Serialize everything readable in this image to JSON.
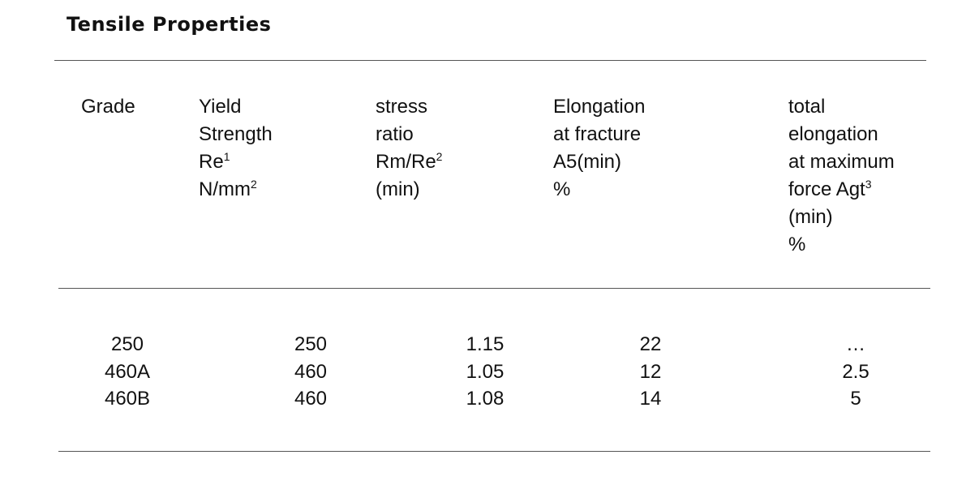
{
  "header": {
    "title": "Tensile Properties"
  },
  "table": {
    "columns": [
      {
        "lines": [
          {
            "text": "Grade"
          }
        ]
      },
      {
        "lines": [
          {
            "text": "Yield"
          },
          {
            "text": "Strength"
          },
          {
            "text": "Re",
            "sup": "1"
          },
          {
            "text": "N/mm",
            "sup": "2"
          }
        ]
      },
      {
        "lines": [
          {
            "text": "stress"
          },
          {
            "text": "ratio"
          },
          {
            "text": "Rm/Re",
            "sup": "2"
          },
          {
            "text": "(min)"
          }
        ]
      },
      {
        "lines": [
          {
            "text": "Elongation"
          },
          {
            "text": "at fracture"
          },
          {
            "text": "A5(min)"
          },
          {
            "text": "%"
          }
        ]
      },
      {
        "lines": [
          {
            "text": "total"
          },
          {
            "text": "elongation"
          },
          {
            "text": "at maximum"
          },
          {
            "text": "force Agt",
            "sup": "3"
          },
          {
            "text": "(min)"
          },
          {
            "text": "%"
          }
        ]
      }
    ],
    "rows": [
      [
        "250",
        250,
        1.15,
        22,
        "…"
      ],
      [
        "460A",
        460,
        1.05,
        12,
        2.5
      ],
      [
        "460B",
        460,
        1.08,
        14,
        5
      ]
    ]
  }
}
